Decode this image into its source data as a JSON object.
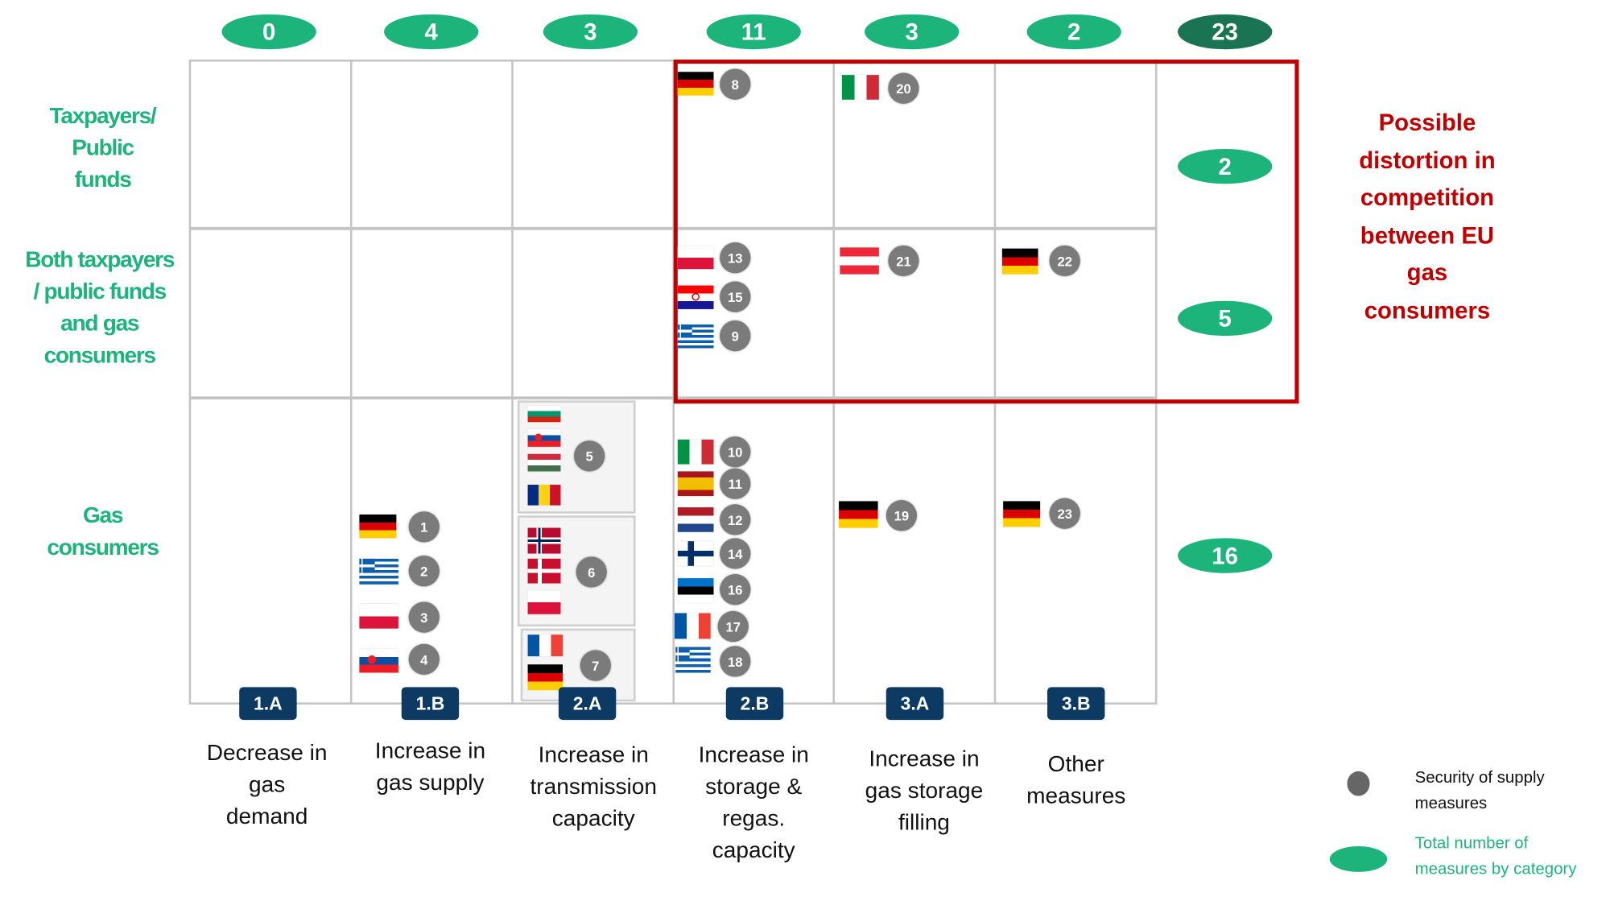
{
  "column_totals": [
    {
      "category": "1.A",
      "total": "0"
    },
    {
      "category": "1.B",
      "total": "4"
    },
    {
      "category": "2.A",
      "total": "3"
    },
    {
      "category": "2.B",
      "total": "11"
    },
    {
      "category": "3.A",
      "total": "3"
    },
    {
      "category": "3.B",
      "total": "2"
    }
  ],
  "grand_total": "23",
  "rows": [
    {
      "label_lines": [
        "Taxpayers/",
        "Public",
        "funds"
      ],
      "total": "2"
    },
    {
      "label_lines": [
        "Both taxpayers",
        "/ public funds",
        "and gas",
        "consumers"
      ],
      "total": "5"
    },
    {
      "label_lines": [
        "Gas",
        "consumers"
      ],
      "total": "16"
    }
  ],
  "distortion_note": [
    "Possible",
    "distortion in",
    "competition",
    "between EU",
    "gas",
    "consumers"
  ],
  "categories": [
    {
      "code": "1.A",
      "label_lines": [
        "Decrease in",
        "gas",
        "demand"
      ]
    },
    {
      "code": "1.B",
      "label_lines": [
        "Increase in",
        "gas supply"
      ]
    },
    {
      "code": "2.A",
      "label_lines": [
        "Increase in",
        "transmission",
        "capacity"
      ]
    },
    {
      "code": "2.B",
      "label_lines": [
        "Increase in",
        "storage &",
        "regas.",
        "capacity"
      ]
    },
    {
      "code": "3.A",
      "label_lines": [
        "Increase in",
        "gas storage",
        "filling"
      ]
    },
    {
      "code": "3.B",
      "label_lines": [
        "Other",
        "measures"
      ]
    }
  ],
  "measures": [
    {
      "number": "8",
      "row": "Taxpayers/Public funds",
      "category": "2.B",
      "flags": [
        "flag-de"
      ]
    },
    {
      "number": "20",
      "row": "Taxpayers/Public funds",
      "category": "3.A",
      "flags": [
        "flag-it"
      ]
    },
    {
      "number": "13",
      "row": "Both",
      "category": "2.B",
      "flags": [
        "flag-pl"
      ]
    },
    {
      "number": "15",
      "row": "Both",
      "category": "2.B",
      "flags": [
        "flag-hr"
      ]
    },
    {
      "number": "9",
      "row": "Both",
      "category": "2.B",
      "flags": [
        "flag-gr"
      ]
    },
    {
      "number": "21",
      "row": "Both",
      "category": "3.A",
      "flags": [
        "flag-at"
      ]
    },
    {
      "number": "22",
      "row": "Both",
      "category": "3.B",
      "flags": [
        "flag-de"
      ]
    },
    {
      "number": "1",
      "row": "Gas consumers",
      "category": "1.B",
      "flags": [
        "flag-de"
      ]
    },
    {
      "number": "2",
      "row": "Gas consumers",
      "category": "1.B",
      "flags": [
        "flag-gr"
      ]
    },
    {
      "number": "3",
      "row": "Gas consumers",
      "category": "1.B",
      "flags": [
        "flag-pl"
      ]
    },
    {
      "number": "4",
      "row": "Gas consumers",
      "category": "1.B",
      "flags": [
        "flag-sk"
      ]
    },
    {
      "number": "5",
      "row": "Gas consumers",
      "category": "2.A",
      "flags": [
        "flag-bg",
        "flag-sk",
        "flag-hu",
        "flag-ro"
      ]
    },
    {
      "number": "6",
      "row": "Gas consumers",
      "category": "2.A",
      "flags": [
        "flag-no",
        "flag-dk",
        "flag-pl"
      ]
    },
    {
      "number": "7",
      "row": "Gas consumers",
      "category": "2.A",
      "flags": [
        "flag-fr",
        "flag-de"
      ]
    },
    {
      "number": "10",
      "row": "Gas consumers",
      "category": "2.B",
      "flags": [
        "flag-it"
      ]
    },
    {
      "number": "11",
      "row": "Gas consumers",
      "category": "2.B",
      "flags": [
        "flag-es"
      ]
    },
    {
      "number": "12",
      "row": "Gas consumers",
      "category": "2.B",
      "flags": [
        "flag-nl"
      ]
    },
    {
      "number": "14",
      "row": "Gas consumers",
      "category": "2.B",
      "flags": [
        "flag-fi"
      ]
    },
    {
      "number": "16",
      "row": "Gas consumers",
      "category": "2.B",
      "flags": [
        "flag-ee"
      ]
    },
    {
      "number": "17",
      "row": "Gas consumers",
      "category": "2.B",
      "flags": [
        "flag-fr"
      ]
    },
    {
      "number": "18",
      "row": "Gas consumers",
      "category": "2.B",
      "flags": [
        "flag-gr"
      ]
    },
    {
      "number": "19",
      "row": "Gas consumers",
      "category": "3.A",
      "flags": [
        "flag-de"
      ]
    },
    {
      "number": "23",
      "row": "Gas consumers",
      "category": "3.B",
      "flags": [
        "flag-de"
      ]
    }
  ],
  "legend": {
    "security_lines": [
      "Security of supply",
      "measures"
    ],
    "total_lines": [
      "Total number of",
      "measures by category"
    ]
  },
  "colors": {
    "green": "#1db47c",
    "dark_green": "#1a7352",
    "red": "#c00000",
    "navy": "#0d3a63",
    "gray_marker": "#7b7b7b"
  }
}
